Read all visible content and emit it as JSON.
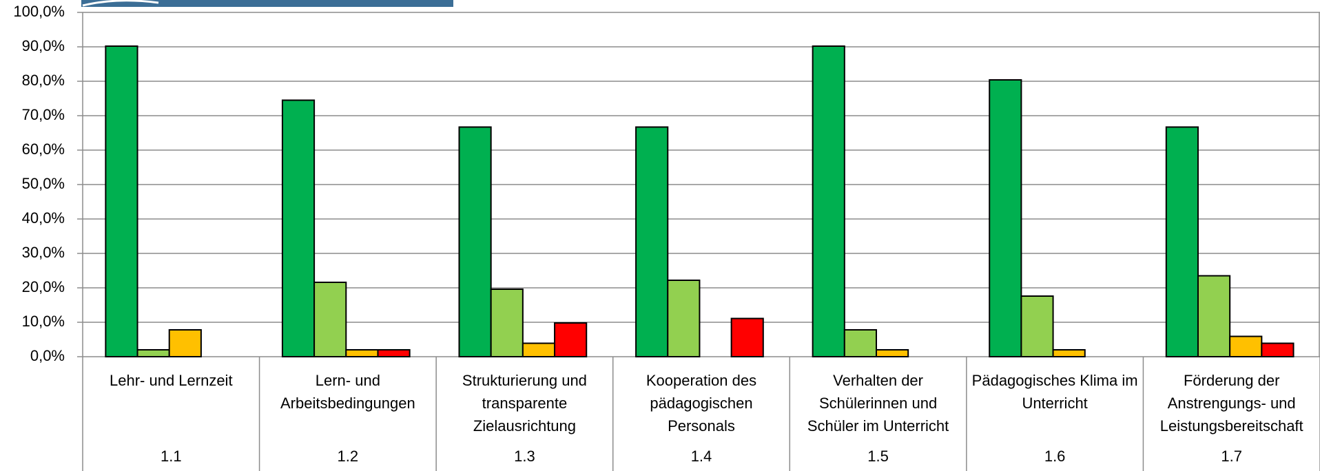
{
  "chart_data": {
    "type": "bar",
    "categories": [
      "Lehr- und Lernzeit",
      "Lern- und Arbeitsbedingungen",
      "Strukturierung und transparente Zielausrichtung",
      "Kooperation des pädagogischen Personals",
      "Verhalten der Schülerinnen und Schüler im Unterricht",
      "Pädagogisches Klima im Unterricht",
      "Förderung der Anstrengungs- und Leistungsbereitschaft"
    ],
    "codes": [
      "1.1",
      "1.2",
      "1.3",
      "1.4",
      "1.5",
      "1.6",
      "1.7"
    ],
    "series": [
      {
        "color": "#00b050",
        "values": [
          90.2,
          74.5,
          66.7,
          66.7,
          90.2,
          80.4,
          66.7
        ]
      },
      {
        "color": "#92d050",
        "values": [
          2.0,
          21.6,
          19.6,
          22.2,
          7.8,
          17.6,
          23.5
        ]
      },
      {
        "color": "#ffc000",
        "values": [
          7.8,
          2.0,
          3.9,
          0,
          2.0,
          2.0,
          5.9
        ]
      },
      {
        "color": "#ff0000",
        "values": [
          0,
          2.0,
          9.8,
          11.1,
          0,
          0,
          3.9
        ]
      }
    ],
    "ylim": [
      0,
      100
    ],
    "yticks": [
      {
        "value": 0,
        "label": "0,0%"
      },
      {
        "value": 10,
        "label": "10,0%"
      },
      {
        "value": 20,
        "label": "20,0%"
      },
      {
        "value": 30,
        "label": "30,0%"
      },
      {
        "value": 40,
        "label": "40,0%"
      },
      {
        "value": 50,
        "label": "50,0%"
      },
      {
        "value": 60,
        "label": "60,0%"
      },
      {
        "value": 70,
        "label": "70,0%"
      },
      {
        "value": 80,
        "label": "80,0%"
      },
      {
        "value": 90,
        "label": "90,0%"
      },
      {
        "value": 100,
        "label": "100,0%"
      }
    ],
    "grid": true
  }
}
